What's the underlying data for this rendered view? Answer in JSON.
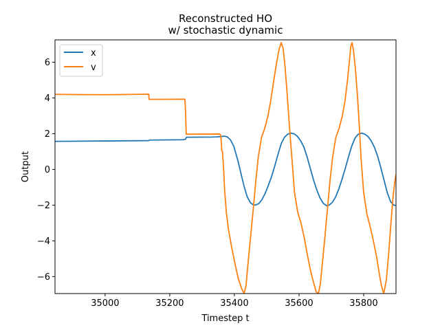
{
  "chart_data": {
    "type": "line",
    "title": "Reconstructed HO",
    "subtitle": "w/ stochastic dynamic",
    "xlabel": "Timestep t",
    "ylabel": "Output",
    "xlim": [
      34845,
      35900
    ],
    "ylim": [
      -6.95,
      7.25
    ],
    "xticks": [
      35000,
      35200,
      35400,
      35600,
      35800
    ],
    "yticks": [
      -6,
      -4,
      -2,
      0,
      2,
      4,
      6
    ],
    "grid": false,
    "legend": {
      "position": "top-left"
    },
    "series": [
      {
        "name": "x",
        "color": "#1f77b4",
        "points": [
          [
            34845,
            1.57
          ],
          [
            35000,
            1.59
          ],
          [
            35135,
            1.61
          ],
          [
            35137,
            1.64
          ],
          [
            35240,
            1.66
          ],
          [
            35248,
            1.68
          ],
          [
            35252,
            1.8
          ],
          [
            35330,
            1.81
          ],
          [
            35345,
            1.82
          ],
          [
            35358,
            1.84
          ],
          [
            35370,
            1.86
          ],
          [
            35378,
            1.82
          ],
          [
            35388,
            1.65
          ],
          [
            35398,
            1.3
          ],
          [
            35410,
            0.55
          ],
          [
            35420,
            -0.2
          ],
          [
            35430,
            -0.95
          ],
          [
            35440,
            -1.55
          ],
          [
            35450,
            -1.87
          ],
          [
            35458,
            -1.98
          ],
          [
            35465,
            -2.0
          ],
          [
            35475,
            -1.92
          ],
          [
            35485,
            -1.7
          ],
          [
            35495,
            -1.35
          ],
          [
            35505,
            -0.9
          ],
          [
            35515,
            -0.4
          ],
          [
            35525,
            0.2
          ],
          [
            35535,
            0.85
          ],
          [
            35545,
            1.45
          ],
          [
            35555,
            1.8
          ],
          [
            35565,
            1.97
          ],
          [
            35575,
            2.03
          ],
          [
            35585,
            1.99
          ],
          [
            35595,
            1.85
          ],
          [
            35605,
            1.6
          ],
          [
            35615,
            1.25
          ],
          [
            35625,
            0.7
          ],
          [
            35635,
            0.05
          ],
          [
            35645,
            -0.6
          ],
          [
            35655,
            -1.15
          ],
          [
            35665,
            -1.6
          ],
          [
            35675,
            -1.9
          ],
          [
            35685,
            -2.03
          ],
          [
            35693,
            -2.0
          ],
          [
            35703,
            -1.85
          ],
          [
            35713,
            -1.55
          ],
          [
            35723,
            -1.1
          ],
          [
            35733,
            -0.55
          ],
          [
            35743,
            0.05
          ],
          [
            35753,
            0.7
          ],
          [
            35763,
            1.3
          ],
          [
            35773,
            1.75
          ],
          [
            35783,
            1.97
          ],
          [
            35793,
            2.03
          ],
          [
            35803,
            1.98
          ],
          [
            35813,
            1.85
          ],
          [
            35823,
            1.6
          ],
          [
            35833,
            1.25
          ],
          [
            35843,
            0.75
          ],
          [
            35853,
            0.1
          ],
          [
            35863,
            -0.6
          ],
          [
            35873,
            -1.3
          ],
          [
            35883,
            -1.8
          ],
          [
            35893,
            -2.0
          ],
          [
            35900,
            -2.02
          ]
        ]
      },
      {
        "name": "v",
        "color": "#ff7f0e",
        "points": [
          [
            34845,
            4.2
          ],
          [
            35000,
            4.18
          ],
          [
            35135,
            4.21
          ],
          [
            35136,
            3.92
          ],
          [
            35247,
            3.93
          ],
          [
            35249,
            3.2
          ],
          [
            35251,
            1.97
          ],
          [
            35355,
            1.98
          ],
          [
            35358,
            1.9
          ],
          [
            35361,
            1.05
          ],
          [
            35363,
            1.02
          ],
          [
            35366,
            0.2
          ],
          [
            35370,
            -1.2
          ],
          [
            35375,
            -2.4
          ],
          [
            35382,
            -3.4
          ],
          [
            35392,
            -4.4
          ],
          [
            35402,
            -5.3
          ],
          [
            35412,
            -6.1
          ],
          [
            35422,
            -6.65
          ],
          [
            35430,
            -6.95
          ],
          [
            35436,
            -6.5
          ],
          [
            35442,
            -5.3
          ],
          [
            35450,
            -3.8
          ],
          [
            35458,
            -2.3
          ],
          [
            35466,
            -0.7
          ],
          [
            35474,
            0.7
          ],
          [
            35484,
            1.8
          ],
          [
            35494,
            2.3
          ],
          [
            35504,
            3.0
          ],
          [
            35512,
            3.8
          ],
          [
            35522,
            5.0
          ],
          [
            35530,
            5.9
          ],
          [
            35538,
            6.7
          ],
          [
            35545,
            7.1
          ],
          [
            35551,
            6.75
          ],
          [
            35557,
            5.7
          ],
          [
            35563,
            4.3
          ],
          [
            35570,
            2.5
          ],
          [
            35578,
            0.6
          ],
          [
            35586,
            -1.3
          ],
          [
            35596,
            -2.4
          ],
          [
            35606,
            -3.0
          ],
          [
            35616,
            -3.8
          ],
          [
            35626,
            -4.8
          ],
          [
            35636,
            -5.7
          ],
          [
            35646,
            -6.4
          ],
          [
            35653,
            -6.85
          ],
          [
            35660,
            -6.95
          ],
          [
            35666,
            -6.4
          ],
          [
            35672,
            -5.3
          ],
          [
            35680,
            -3.8
          ],
          [
            35688,
            -2.2
          ],
          [
            35696,
            -0.6
          ],
          [
            35704,
            0.7
          ],
          [
            35714,
            1.8
          ],
          [
            35724,
            2.3
          ],
          [
            35734,
            3.0
          ],
          [
            35742,
            3.8
          ],
          [
            35750,
            5.0
          ],
          [
            35756,
            6.1
          ],
          [
            35760,
            6.85
          ],
          [
            35764,
            7.1
          ],
          [
            35769,
            6.6
          ],
          [
            35774,
            5.7
          ],
          [
            35780,
            4.3
          ],
          [
            35786,
            2.6
          ],
          [
            35792,
            0.6
          ],
          [
            35800,
            -1.3
          ],
          [
            35810,
            -2.5
          ],
          [
            35820,
            -3.2
          ],
          [
            35830,
            -4.0
          ],
          [
            35840,
            -4.9
          ],
          [
            35848,
            -5.8
          ],
          [
            35855,
            -6.5
          ],
          [
            35862,
            -6.95
          ],
          [
            35870,
            -6.2
          ],
          [
            35877,
            -4.8
          ],
          [
            35884,
            -3.1
          ],
          [
            35891,
            -1.5
          ],
          [
            35897,
            -0.6
          ],
          [
            35900,
            -0.3
          ]
        ]
      }
    ]
  }
}
